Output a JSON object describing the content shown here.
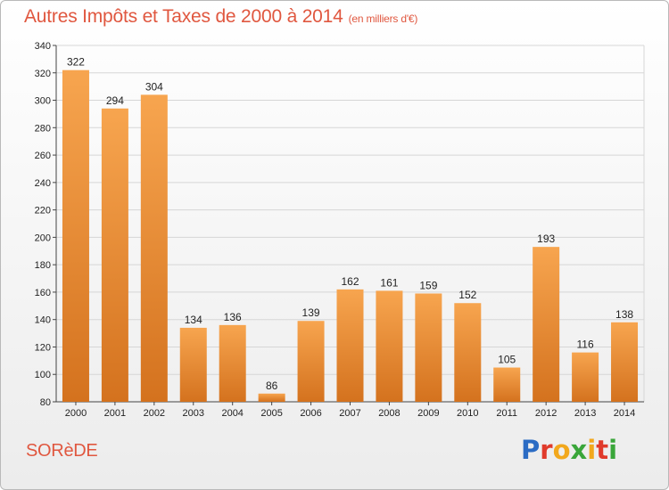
{
  "header": {
    "title": "Autres Impôts et Taxes de 2000 à 2014",
    "subtitle": "(en milliers d'€)"
  },
  "footer": {
    "commune": "SORèDE",
    "logo": "Proxiti",
    "logo_colors": [
      "#2b6cc4",
      "#e03a2b",
      "#f2a81d",
      "#3aa63a",
      "#f2a81d",
      "#e03a2b",
      "#3aa63a"
    ]
  },
  "colors": {
    "bar_light": "#f7a54f",
    "bar_dark": "#d4721e",
    "accent": "#e0573f"
  },
  "chart_data": {
    "type": "bar",
    "title": "Autres Impôts et Taxes de 2000 à 2014",
    "subtitle": "(en milliers d'€)",
    "xlabel": "",
    "ylabel": "",
    "categories": [
      "2000",
      "2001",
      "2002",
      "2003",
      "2004",
      "2005",
      "2006",
      "2007",
      "2008",
      "2009",
      "2010",
      "2011",
      "2012",
      "2013",
      "2014"
    ],
    "values": [
      322,
      294,
      304,
      134,
      136,
      86,
      139,
      162,
      161,
      159,
      152,
      105,
      193,
      116,
      138
    ],
    "ylim": [
      80,
      340
    ],
    "yticks": [
      80,
      100,
      120,
      140,
      160,
      180,
      200,
      220,
      240,
      260,
      280,
      300,
      320,
      340
    ],
    "grid": true,
    "legend": "none"
  }
}
